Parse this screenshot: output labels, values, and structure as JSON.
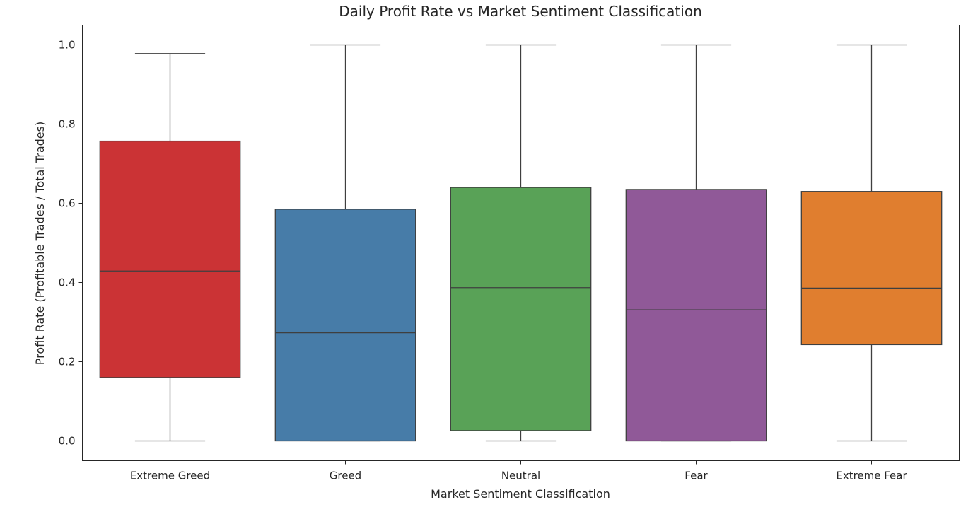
{
  "chart_data": {
    "type": "box",
    "title": "Daily Profit Rate vs Market Sentiment Classification",
    "xlabel": "Market Sentiment Classification",
    "ylabel": "Profit Rate (Profitable Trades / Total Trades)",
    "ylim": [
      -0.05,
      1.05
    ],
    "yticks": [
      0.0,
      0.2,
      0.4,
      0.6,
      0.8,
      1.0
    ],
    "ytick_labels": [
      "0.0",
      "0.2",
      "0.4",
      "0.6",
      "0.8",
      "1.0"
    ],
    "grid": false,
    "categories": [
      "Extreme Greed",
      "Greed",
      "Neutral",
      "Fear",
      "Extreme Fear"
    ],
    "boxes": [
      {
        "category": "Extreme Greed",
        "whisker_low": 0.0,
        "q1": 0.16,
        "median": 0.429,
        "q3": 0.757,
        "whisker_high": 0.978,
        "color": "#cb3335"
      },
      {
        "category": "Greed",
        "whisker_low": 0.0,
        "q1": 0.0,
        "median": 0.273,
        "q3": 0.585,
        "whisker_high": 1.0,
        "color": "#477ca8"
      },
      {
        "category": "Neutral",
        "whisker_low": 0.0,
        "q1": 0.026,
        "median": 0.387,
        "q3": 0.64,
        "whisker_high": 1.0,
        "color": "#59a257"
      },
      {
        "category": "Fear",
        "whisker_low": 0.0,
        "q1": 0.0,
        "median": 0.331,
        "q3": 0.635,
        "whisker_high": 1.0,
        "color": "#905998"
      },
      {
        "category": "Extreme Fear",
        "whisker_low": 0.0,
        "q1": 0.243,
        "median": 0.386,
        "q3": 0.63,
        "whisker_high": 1.0,
        "color": "#e07e2f"
      }
    ]
  }
}
